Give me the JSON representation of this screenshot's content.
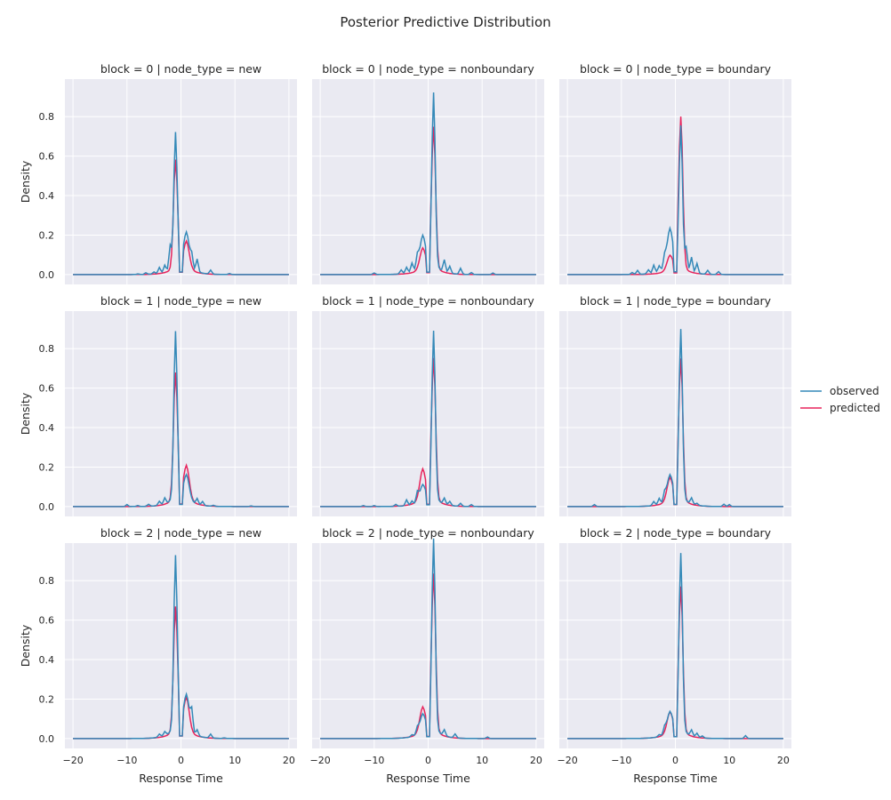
{
  "figure": {
    "title": "Posterior Predictive Distribution",
    "xlabel": "Response Time",
    "ylabel": "Density"
  },
  "legend": {
    "placement": "right",
    "entries": [
      {
        "label": "observed",
        "color": "#3489b8"
      },
      {
        "label": "predicted",
        "color": "#e8245c"
      }
    ]
  },
  "colors": {
    "background": "#eaeaf2",
    "grid": "#ffffff"
  },
  "chart_data": {
    "type": "line",
    "layout": "facet-grid 3x3",
    "xlim": [
      -21.5,
      21.5
    ],
    "ylim": [
      -0.05,
      0.99
    ],
    "x_ticks": [
      -20,
      -10,
      0,
      10,
      20
    ],
    "y_ticks": [
      0.0,
      0.2,
      0.4,
      0.6,
      0.8
    ],
    "x_tick_labels": [
      "−20",
      "−10",
      "0",
      "10",
      "20"
    ],
    "y_tick_labels": [
      "0.0",
      "0.2",
      "0.4",
      "0.6",
      "0.8"
    ],
    "panels": [
      {
        "title": "block = 0 | node_type = new",
        "block": 0,
        "node_type": "new",
        "observed": {
          "peakX": -1.0,
          "peak": 0.67,
          "secX": 1.0,
          "sec": 0.165,
          "n": [
            [
              -8,
              0.003
            ],
            [
              -6.5,
              0.008
            ],
            [
              -5,
              0.01
            ],
            [
              -4,
              0.03
            ],
            [
              -3,
              0.035
            ],
            [
              -2,
              0.12
            ],
            [
              2,
              0.06
            ],
            [
              3,
              0.065
            ],
            [
              5.5,
              0.02
            ],
            [
              9,
              0.005
            ]
          ]
        },
        "predicted": {
          "peakX": -1.0,
          "peak": 0.54,
          "secX": 1.0,
          "sec": 0.13
        }
      },
      {
        "title": "block = 0 | node_type = nonboundary",
        "block": 0,
        "node_type": "nonboundary",
        "observed": {
          "peakX": 1.0,
          "peak": 0.86,
          "secX": -1.0,
          "sec": 0.15,
          "n": [
            [
              -10,
              0.008
            ],
            [
              -5,
              0.02
            ],
            [
              -4,
              0.03
            ],
            [
              -3,
              0.045
            ],
            [
              -2,
              0.06
            ],
            [
              3,
              0.06
            ],
            [
              4,
              0.035
            ],
            [
              6,
              0.03
            ],
            [
              8,
              0.01
            ],
            [
              12,
              0.008
            ]
          ]
        },
        "predicted": {
          "peakX": 1.0,
          "peak": 0.7,
          "secX": -1.0,
          "sec": 0.1
        }
      },
      {
        "title": "block = 0 | node_type = boundary",
        "block": 0,
        "node_type": "boundary",
        "observed": {
          "peakX": 1.0,
          "peak": 0.7,
          "secX": -1.0,
          "sec": 0.18,
          "n": [
            [
              -8,
              0.01
            ],
            [
              -7,
              0.02
            ],
            [
              -5,
              0.02
            ],
            [
              -4,
              0.04
            ],
            [
              -3,
              0.03
            ],
            [
              -2,
              0.05
            ],
            [
              2,
              0.11
            ],
            [
              3,
              0.075
            ],
            [
              4,
              0.05
            ],
            [
              6,
              0.02
            ],
            [
              8,
              0.015
            ]
          ]
        },
        "predicted": {
          "peakX": 1.0,
          "peak": 0.75,
          "secX": -1.0,
          "sec": 0.07
        }
      },
      {
        "title": "block = 1 | node_type = new",
        "block": 1,
        "node_type": "new",
        "observed": {
          "peakX": -1.0,
          "peak": 0.83,
          "secX": 1.0,
          "sec": 0.12,
          "n": [
            [
              -10,
              0.01
            ],
            [
              -8,
              0.005
            ],
            [
              -6,
              0.01
            ],
            [
              -4,
              0.02
            ],
            [
              -3,
              0.03
            ],
            [
              3,
              0.03
            ],
            [
              4,
              0.02
            ],
            [
              6,
              0.005
            ],
            [
              13,
              0.003
            ]
          ]
        },
        "predicted": {
          "peakX": -1.0,
          "peak": 0.63,
          "secX": 1.0,
          "sec": 0.16
        }
      },
      {
        "title": "block = 1 | node_type = nonboundary",
        "block": 1,
        "node_type": "nonboundary",
        "observed": {
          "peakX": 1.0,
          "peak": 0.835,
          "secX": -1.0,
          "sec": 0.08,
          "n": [
            [
              -12,
              0.005
            ],
            [
              -10,
              0.005
            ],
            [
              -6,
              0.01
            ],
            [
              -4,
              0.03
            ],
            [
              -3,
              0.02
            ],
            [
              -2,
              0.05
            ],
            [
              3,
              0.03
            ],
            [
              4,
              0.02
            ],
            [
              6,
              0.015
            ],
            [
              8,
              0.01
            ]
          ]
        },
        "predicted": {
          "peakX": 1.0,
          "peak": 0.7,
          "secX": -1.0,
          "sec": 0.145
        }
      },
      {
        "title": "block = 1 | node_type = boundary",
        "block": 1,
        "node_type": "boundary",
        "observed": {
          "peakX": 1.0,
          "peak": 0.84,
          "secX": -1.0,
          "sec": 0.12,
          "n": [
            [
              -15,
              0.01
            ],
            [
              -4,
              0.02
            ],
            [
              -3,
              0.03
            ],
            [
              -2,
              0.04
            ],
            [
              3,
              0.03
            ],
            [
              4,
              0.01
            ],
            [
              9,
              0.012
            ],
            [
              10,
              0.01
            ]
          ]
        },
        "predicted": {
          "peakX": 1.0,
          "peak": 0.7,
          "secX": -1.0,
          "sec": 0.11
        }
      },
      {
        "title": "block = 2 | node_type = new",
        "block": 2,
        "node_type": "new",
        "observed": {
          "peakX": -1.0,
          "peak": 0.865,
          "secX": 1.0,
          "sec": 0.17,
          "n": [
            [
              -4,
              0.015
            ],
            [
              -3,
              0.02
            ],
            [
              2,
              0.1
            ],
            [
              3,
              0.03
            ],
            [
              5.5,
              0.02
            ],
            [
              8,
              0.003
            ]
          ]
        },
        "predicted": {
          "peakX": -1.0,
          "peak": 0.62,
          "secX": 1.0,
          "sec": 0.16
        }
      },
      {
        "title": "block = 2 | node_type = nonboundary",
        "block": 2,
        "node_type": "nonboundary",
        "observed": {
          "peakX": 1.0,
          "peak": 0.95,
          "secX": -1.0,
          "sec": 0.09,
          "n": [
            [
              -3,
              0.01
            ],
            [
              -2,
              0.03
            ],
            [
              3,
              0.03
            ],
            [
              5,
              0.02
            ],
            [
              11,
              0.008
            ]
          ]
        },
        "predicted": {
          "peakX": 1.0,
          "peak": 0.78,
          "secX": -1.0,
          "sec": 0.12
        }
      },
      {
        "title": "block = 2 | node_type = boundary",
        "block": 2,
        "node_type": "boundary",
        "observed": {
          "peakX": 1.0,
          "peak": 0.88,
          "secX": -1.0,
          "sec": 0.1,
          "n": [
            [
              -3,
              0.01
            ],
            [
              -2,
              0.03
            ],
            [
              3,
              0.03
            ],
            [
              4,
              0.02
            ],
            [
              5,
              0.01
            ],
            [
              13,
              0.015
            ]
          ]
        },
        "predicted": {
          "peakX": 1.0,
          "peak": 0.72,
          "secX": -1.0,
          "sec": 0.1
        }
      }
    ]
  }
}
